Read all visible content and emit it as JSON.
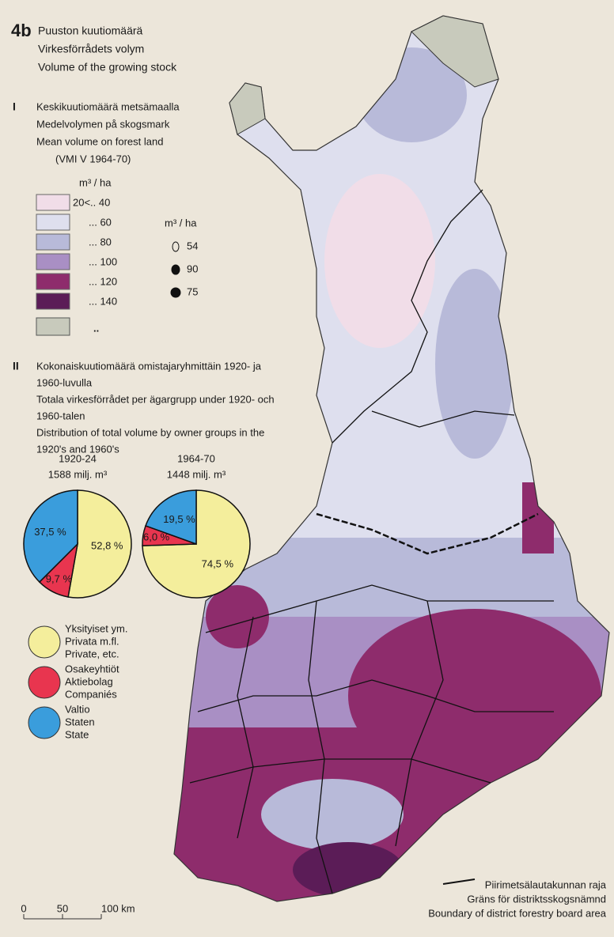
{
  "header": {
    "number": "4b",
    "titles": [
      "Puuston kuutiomäärä",
      "Virkesförrådets volym",
      "Volume of the growing stock"
    ]
  },
  "section_1": {
    "numeral": "I",
    "titles": [
      "Keskikuutiomäärä metsämaalla",
      "Medelvolymen på skogsmark",
      "Mean volume on forest land",
      "(VMI V 1964-70)"
    ],
    "unit": "m³ / ha",
    "classes": [
      {
        "label": "20<.. 40",
        "color": "#f1dde8"
      },
      {
        "label": "... 60",
        "color": "#dedfee"
      },
      {
        "label": "... 80",
        "color": "#b8bad9"
      },
      {
        "label": "... 100",
        "color": "#a98fc4"
      },
      {
        "label": "... 120",
        "color": "#8e2c6c"
      },
      {
        "label": "... 140",
        "color": "#5b1c57"
      }
    ],
    "no_data": {
      "label": "..",
      "color": "#c8cabc"
    },
    "symbol_unit": "m³ / ha",
    "symbols": [
      "54",
      "90",
      "75"
    ]
  },
  "section_2": {
    "numeral": "II",
    "titles": [
      "Kokonaiskuutiomäärä omistajaryhmittäin 1920- ja",
      "1960-luvulla",
      "Totala virkesförrådet per ägargrupp under 1920- och",
      "1960-talen",
      "Distribution of total volume by owner groups in the",
      "1920's and 1960's"
    ],
    "pies": [
      {
        "title": "1920-24",
        "total": "1588 milj. m³",
        "values": [
          52.8,
          9.7,
          37.5
        ],
        "value_labels": [
          "52,8 %",
          "9,7 %",
          "37,5 %"
        ]
      },
      {
        "title": "1964-70",
        "total": "1448 milj. m³",
        "values": [
          74.5,
          6.0,
          19.5
        ],
        "value_labels": [
          "74,5 %",
          "6,0 %",
          "19,5 %"
        ]
      }
    ],
    "owners": [
      {
        "labels": [
          "Yksityiset ym.",
          "Privata m.fl.",
          "Private, etc."
        ],
        "color": "#f4ee9c"
      },
      {
        "labels": [
          "Osakeyhtiöt",
          "Aktiebolag",
          "Companiés"
        ],
        "color": "#e8354f"
      },
      {
        "labels": [
          "Valtio",
          "Staten",
          "State"
        ],
        "color": "#3a9ddc"
      }
    ]
  },
  "boundary_legend": [
    "Piirimetsälautakunnan raja",
    "Gräns för distriktsskogsnämnd",
    "Boundary of district forestry board area"
  ],
  "scale": [
    "0",
    "50",
    "100 km"
  ]
}
